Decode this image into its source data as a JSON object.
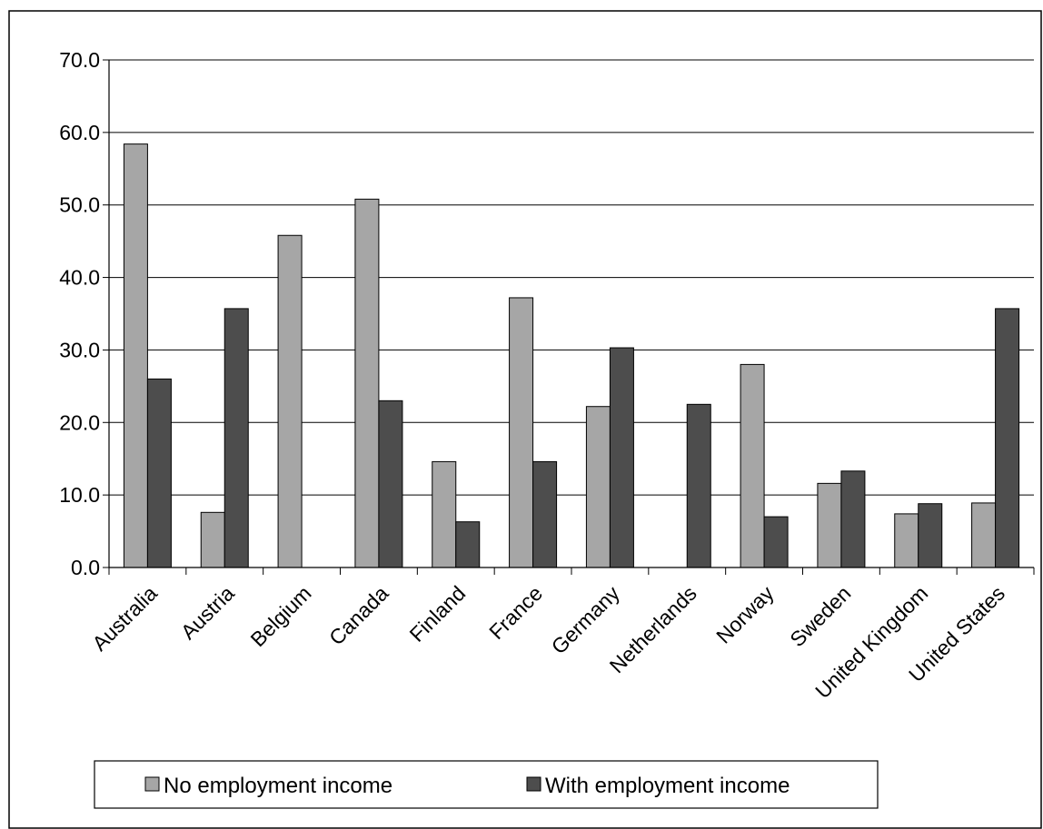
{
  "chart_data": {
    "type": "bar",
    "title": "",
    "xlabel": "",
    "ylabel": "",
    "categories": [
      "Australia",
      "Austria",
      "Belgium",
      "Canada",
      "Finland",
      "France",
      "Germany",
      "Netherlands",
      "Norway",
      "Sweden",
      "United Kingdom",
      "United States"
    ],
    "series": [
      {
        "name": "No employment income",
        "color": "#a6a6a6",
        "values": [
          58.4,
          7.6,
          45.8,
          50.8,
          14.6,
          37.2,
          22.2,
          null,
          28.0,
          11.6,
          7.4,
          8.9
        ]
      },
      {
        "name": "With employment income",
        "color": "#4d4d4d",
        "values": [
          26.0,
          35.7,
          null,
          23.0,
          6.3,
          14.6,
          30.3,
          22.5,
          7.0,
          13.3,
          8.8,
          35.7
        ]
      }
    ],
    "ylim": [
      0,
      70
    ],
    "yticks": [
      "0.0",
      "10.0",
      "20.0",
      "30.0",
      "40.0",
      "50.0",
      "60.0",
      "70.0"
    ],
    "grid": true,
    "legend_position": "bottom"
  }
}
